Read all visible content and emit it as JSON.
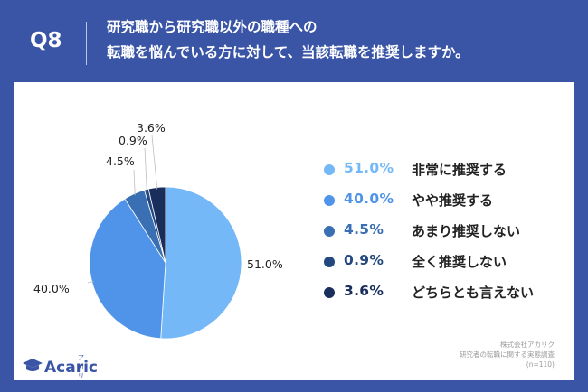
{
  "header": {
    "question_number": "Q8",
    "question_line1": "研究職から研究職以外の職種への",
    "question_line2": "転職を悩んでいる方に対して、当該転職を推奨しますか。"
  },
  "chart_data": {
    "type": "pie",
    "title": "",
    "slices": [
      {
        "label": "非常に推奨する",
        "value": 51.0,
        "value_text": "51.0%",
        "color": "#74b8f7"
      },
      {
        "label": "やや推奨する",
        "value": 40.0,
        "value_text": "40.0%",
        "color": "#4f94e8"
      },
      {
        "label": "あまり推奨しない",
        "value": 4.5,
        "value_text": "4.5%",
        "color": "#3a6fb3"
      },
      {
        "label": "全く推奨しない",
        "value": 0.9,
        "value_text": "0.9%",
        "color": "#23477f"
      },
      {
        "label": "どちらとも言えない",
        "value": 3.6,
        "value_text": "3.6%",
        "color": "#1a2e5c"
      }
    ],
    "start_angle": "top",
    "direction": "clockwise",
    "legend_position": "right"
  },
  "colors": {
    "background": "#3a54a6",
    "card": "#ffffff",
    "brand": "#3a54a6"
  },
  "footer": {
    "logo_text": "Acaric",
    "logo_kana": "アカリク",
    "logo_icon": "graduation-cap-icon",
    "source_line1": "株式会社アカリク",
    "source_line2": "研究者の転職に関する実態調査",
    "source_line3": "(n=110)"
  }
}
